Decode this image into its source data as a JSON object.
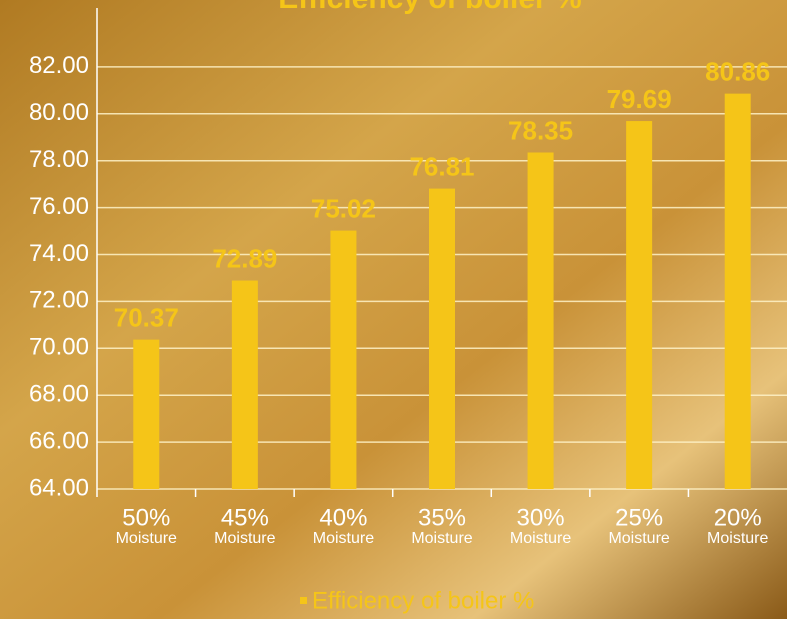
{
  "chart_data": {
    "type": "bar",
    "title": "Efficiency of boiler %",
    "categories": [
      [
        "50%",
        "Moisture"
      ],
      [
        "45%",
        "Moisture"
      ],
      [
        "40%",
        "Moisture"
      ],
      [
        "35%",
        "Moisture"
      ],
      [
        "30%",
        "Moisture"
      ],
      [
        "25%",
        "Moisture"
      ],
      [
        "20%",
        "Moisture"
      ]
    ],
    "series": [
      {
        "name": "Efficiency of boiler %",
        "color": "#f5c518",
        "values": [
          70.37,
          72.89,
          75.02,
          76.81,
          78.35,
          79.69,
          80.86
        ]
      }
    ],
    "ylim": [
      64,
      84
    ],
    "yticks": [
      {
        "value": 64,
        "label": "64.00"
      },
      {
        "value": 66,
        "label": "66.00"
      },
      {
        "value": 68,
        "label": "68.00"
      },
      {
        "value": 70,
        "label": "70.00"
      },
      {
        "value": 72,
        "label": "72.00"
      },
      {
        "value": 74,
        "label": "74.00"
      },
      {
        "value": 76,
        "label": "76.00"
      },
      {
        "value": 78,
        "label": "78.00"
      },
      {
        "value": 80,
        "label": "80.00"
      },
      {
        "value": 82,
        "label": "82.00"
      }
    ],
    "grid": true,
    "legend": "bottom"
  }
}
